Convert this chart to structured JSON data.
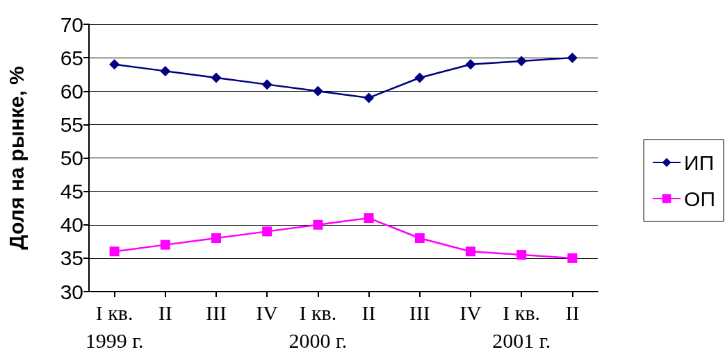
{
  "chart_data": {
    "type": "line",
    "ylabel": "Доля на рынке, %",
    "categories": [
      "I кв.\n1999 г.",
      "II",
      "III",
      "IV",
      "I кв.\n2000 г.",
      "II",
      "III",
      "IV",
      "I кв.\n2001 г.",
      "II"
    ],
    "series": [
      {
        "name": "ИП",
        "color": "#000080",
        "marker": "diamond",
        "values": [
          64,
          63,
          62,
          61,
          60,
          59,
          62,
          64,
          64.5,
          65
        ]
      },
      {
        "name": "ОП",
        "color": "#ff00ff",
        "marker": "square",
        "values": [
          36,
          37,
          38,
          39,
          40,
          41,
          38,
          36,
          35.5,
          35
        ]
      }
    ],
    "ylim": [
      30,
      70
    ],
    "yticks": [
      30,
      35,
      40,
      45,
      50,
      55,
      60,
      65,
      70
    ],
    "grid": "y",
    "legend": "right"
  }
}
